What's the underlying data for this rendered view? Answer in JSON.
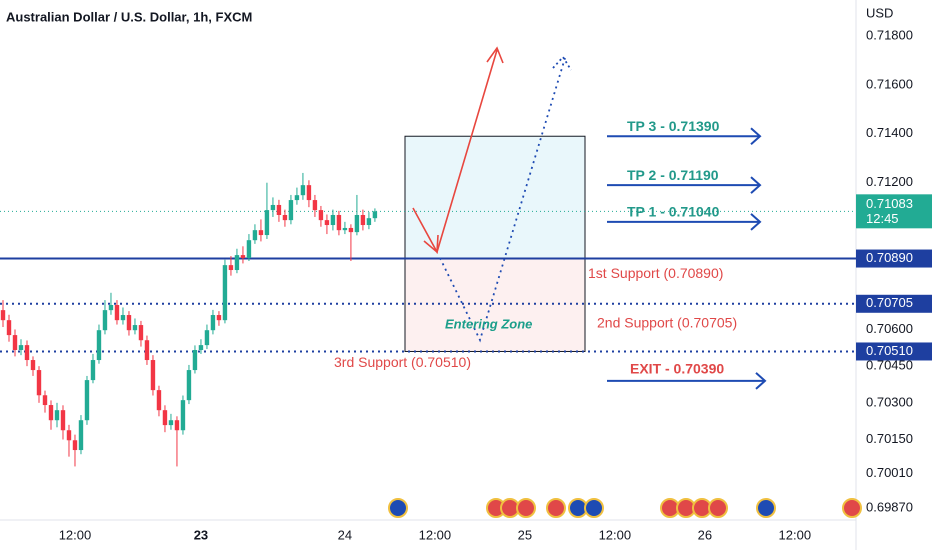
{
  "chart_data": {
    "type": "candlestick",
    "title": "Australian Dollar / U.S. Dollar, 1h, FXCM",
    "currency": "USD",
    "up_color": "#22ab94",
    "down_color": "#f23645",
    "open": [
      0.70679,
      0.70638,
      0.70577,
      0.70516,
      0.70536,
      0.70475,
      0.70434,
      0.70331,
      0.70291,
      0.70229,
      0.7027,
      0.70188,
      0.70147,
      0.70107,
      0.70229,
      0.70393,
      0.70475,
      0.70597,
      0.70679,
      0.707,
      0.70638,
      0.70659,
      0.70597,
      0.70618,
      0.70556,
      0.70475,
      0.70352,
      0.7027,
      0.70209,
      0.70229,
      0.70188,
      0.70311,
      0.70434,
      0.70516,
      0.70536,
      0.70597,
      0.70659,
      0.70638,
      0.70863,
      0.70843,
      0.70904,
      0.70892,
      0.70965,
      0.71006,
      0.70986,
      0.71088,
      0.71109,
      0.71068,
      0.71047,
      0.71129,
      0.71149,
      0.7119,
      0.71129,
      0.71088,
      0.71047,
      0.71027,
      0.71068,
      0.71006,
      0.71015,
      0.70998,
      0.71068,
      0.71027,
      0.71055
    ],
    "high": [
      0.7072,
      0.7066,
      0.706,
      0.7056,
      0.70555,
      0.7049,
      0.7045,
      0.7035,
      0.7031,
      0.703,
      0.7029,
      0.7021,
      0.7017,
      0.7025,
      0.7041,
      0.705,
      0.7062,
      0.7072,
      0.7075,
      0.7072,
      0.7069,
      0.70675,
      0.70645,
      0.70635,
      0.70575,
      0.70495,
      0.7037,
      0.7029,
      0.70255,
      0.70245,
      0.7033,
      0.70455,
      0.70535,
      0.7056,
      0.7062,
      0.7068,
      0.70675,
      0.70885,
      0.709,
      0.7093,
      0.7094,
      0.7099,
      0.7103,
      0.7105,
      0.712,
      0.7114,
      0.7113,
      0.7109,
      0.7115,
      0.7118,
      0.7124,
      0.7121,
      0.7115,
      0.71105,
      0.7107,
      0.7109,
      0.71085,
      0.7104,
      0.7103,
      0.7115,
      0.7109,
      0.7108,
      0.71095
    ],
    "low": [
      0.7061,
      0.7055,
      0.7049,
      0.70495,
      0.7045,
      0.7041,
      0.703,
      0.7026,
      0.7019,
      0.702,
      0.7015,
      0.7008,
      0.7004,
      0.7009,
      0.7021,
      0.7038,
      0.7046,
      0.7058,
      0.7066,
      0.7062,
      0.7062,
      0.70575,
      0.7058,
      0.7053,
      0.70455,
      0.7033,
      0.70245,
      0.7018,
      0.7019,
      0.7004,
      0.7017,
      0.70295,
      0.7042,
      0.705,
      0.7052,
      0.7058,
      0.70615,
      0.70625,
      0.7082,
      0.7083,
      0.7087,
      0.7088,
      0.7095,
      0.7096,
      0.7097,
      0.7106,
      0.7104,
      0.7102,
      0.7103,
      0.7111,
      0.7113,
      0.711,
      0.7106,
      0.7102,
      0.7099,
      0.71005,
      0.70985,
      0.7099,
      0.7088,
      0.70985,
      0.71005,
      0.7101,
      0.7104
    ],
    "close": [
      0.70638,
      0.70577,
      0.70516,
      0.70536,
      0.70475,
      0.70434,
      0.70331,
      0.70291,
      0.70229,
      0.7027,
      0.70188,
      0.70147,
      0.70107,
      0.70229,
      0.70393,
      0.70475,
      0.70597,
      0.70679,
      0.707,
      0.70638,
      0.70659,
      0.70597,
      0.70618,
      0.70556,
      0.70475,
      0.70352,
      0.7027,
      0.70209,
      0.70229,
      0.70188,
      0.70311,
      0.70434,
      0.70516,
      0.70536,
      0.70597,
      0.70659,
      0.70638,
      0.70863,
      0.70843,
      0.70904,
      0.70892,
      0.70965,
      0.71006,
      0.70986,
      0.71088,
      0.71109,
      0.71068,
      0.71047,
      0.71129,
      0.71149,
      0.7119,
      0.71129,
      0.71088,
      0.71047,
      0.71027,
      0.71068,
      0.71006,
      0.71015,
      0.70998,
      0.71068,
      0.71027,
      0.71055,
      0.71083
    ],
    "xlim": [
      -0.5,
      142.2
    ],
    "xticks": [
      {
        "value": 12,
        "label": "12:00"
      },
      {
        "value": 33,
        "label": "23"
      },
      {
        "value": 57,
        "label": "24"
      },
      {
        "value": 72,
        "label": "12:00"
      },
      {
        "value": 87,
        "label": "25"
      },
      {
        "value": 102,
        "label": "12:00"
      },
      {
        "value": 117,
        "label": "26"
      },
      {
        "value": 132,
        "label": "12:00"
      }
    ],
    "ylim": [
      0.69821,
      0.71947
    ],
    "yticks": [
      {
        "value": 0.718,
        "label": "0.71800"
      },
      {
        "value": 0.716,
        "label": "0.71600"
      },
      {
        "value": 0.714,
        "label": "0.71400"
      },
      {
        "value": 0.712,
        "label": "0.71200"
      },
      {
        "value": 0.706,
        "label": "0.70600"
      },
      {
        "value": 0.7045,
        "label": "0.70450"
      },
      {
        "value": 0.703,
        "label": "0.70300"
      },
      {
        "value": 0.7015,
        "label": "0.70150"
      },
      {
        "value": 0.7001,
        "label": "0.70010"
      },
      {
        "value": 0.6987,
        "label": "0.69870"
      }
    ],
    "current_price": {
      "value": 0.71083,
      "label": "0.71083",
      "countdown": "12:45"
    },
    "levels": [
      {
        "label": "1st Support (0.70890)",
        "value": 0.7089,
        "axis_label": "0.70890"
      },
      {
        "label": "2nd Support (0.70705)",
        "value": 0.70705,
        "axis_label": "0.70705"
      },
      {
        "label": "3rd Support (0.70510)",
        "value": 0.7051,
        "axis_label": "0.70510"
      }
    ],
    "targets": [
      {
        "label": "TP 3 - 0.71390",
        "value": 0.7139
      },
      {
        "label": "TP 2 - 0.71190",
        "value": 0.7119
      },
      {
        "label": "TP 1 - 0.71040",
        "value": 0.7104
      }
    ],
    "exit": {
      "label": "EXIT - 0.70390",
      "value": 0.7039
    },
    "zone_label": "Entering Zone"
  }
}
